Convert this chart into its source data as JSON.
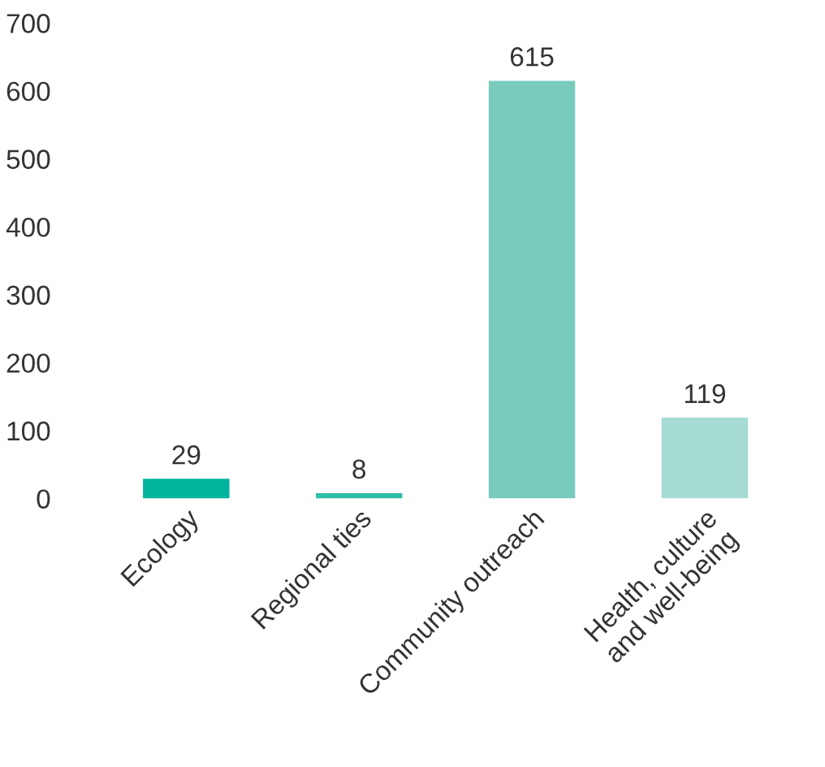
{
  "chart_data": {
    "type": "bar",
    "categories": [
      "Ecology",
      "Regional ties",
      "Community outreach",
      "Health, culture\nand well-being"
    ],
    "values": [
      29,
      8,
      615,
      119
    ],
    "colors": [
      "#00b39a",
      "#2dbfa6",
      "#79ccbd",
      "#a6dcd3"
    ],
    "ylim": [
      0,
      700
    ],
    "yticks": [
      0,
      100,
      200,
      300,
      400,
      500,
      600,
      700
    ],
    "data_labels": true,
    "grid": false,
    "legend": false
  }
}
